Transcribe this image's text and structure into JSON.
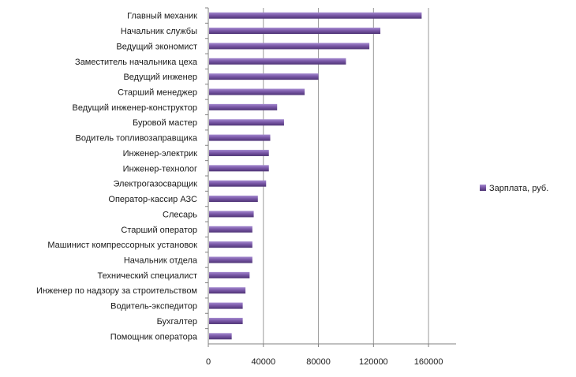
{
  "chart_data": {
    "type": "bar",
    "orientation": "horizontal",
    "categories": [
      "Главный механик",
      "Начальник службы",
      "Ведущий экономист",
      "Заместитель начальника  цеха",
      "Ведущий инженер",
      "Старший менеджер",
      "Ведущий инженер-конструктор",
      "Буровой мастер",
      "Водитель топливозаправщика",
      "Инженер-электрик",
      "Инженер-технолог",
      "Электрогазосварщик",
      "Оператор-кассир АЗС",
      "Слесарь",
      "Старший оператор",
      "Машинист компрессорных установок",
      "Начальник отдела",
      "Технический специалист",
      "Инженер по надзору  за строительством",
      "Водитель-экспедитор",
      "Бухгалтер",
      "Помощник оператора"
    ],
    "series": [
      {
        "name": "Зарплата, руб.",
        "color": "#7B59A8",
        "values": [
          155000,
          125000,
          117000,
          100000,
          80000,
          70000,
          50000,
          55000,
          45000,
          44000,
          44000,
          42000,
          36000,
          33000,
          32000,
          32000,
          32000,
          30000,
          27000,
          25000,
          25000,
          17000
        ]
      }
    ],
    "x_ticks": [
      "0",
      "40000",
      "80000",
      "120000",
      "160000"
    ],
    "xlim": [
      0,
      180000
    ],
    "grid": true,
    "legend_position": "right"
  }
}
